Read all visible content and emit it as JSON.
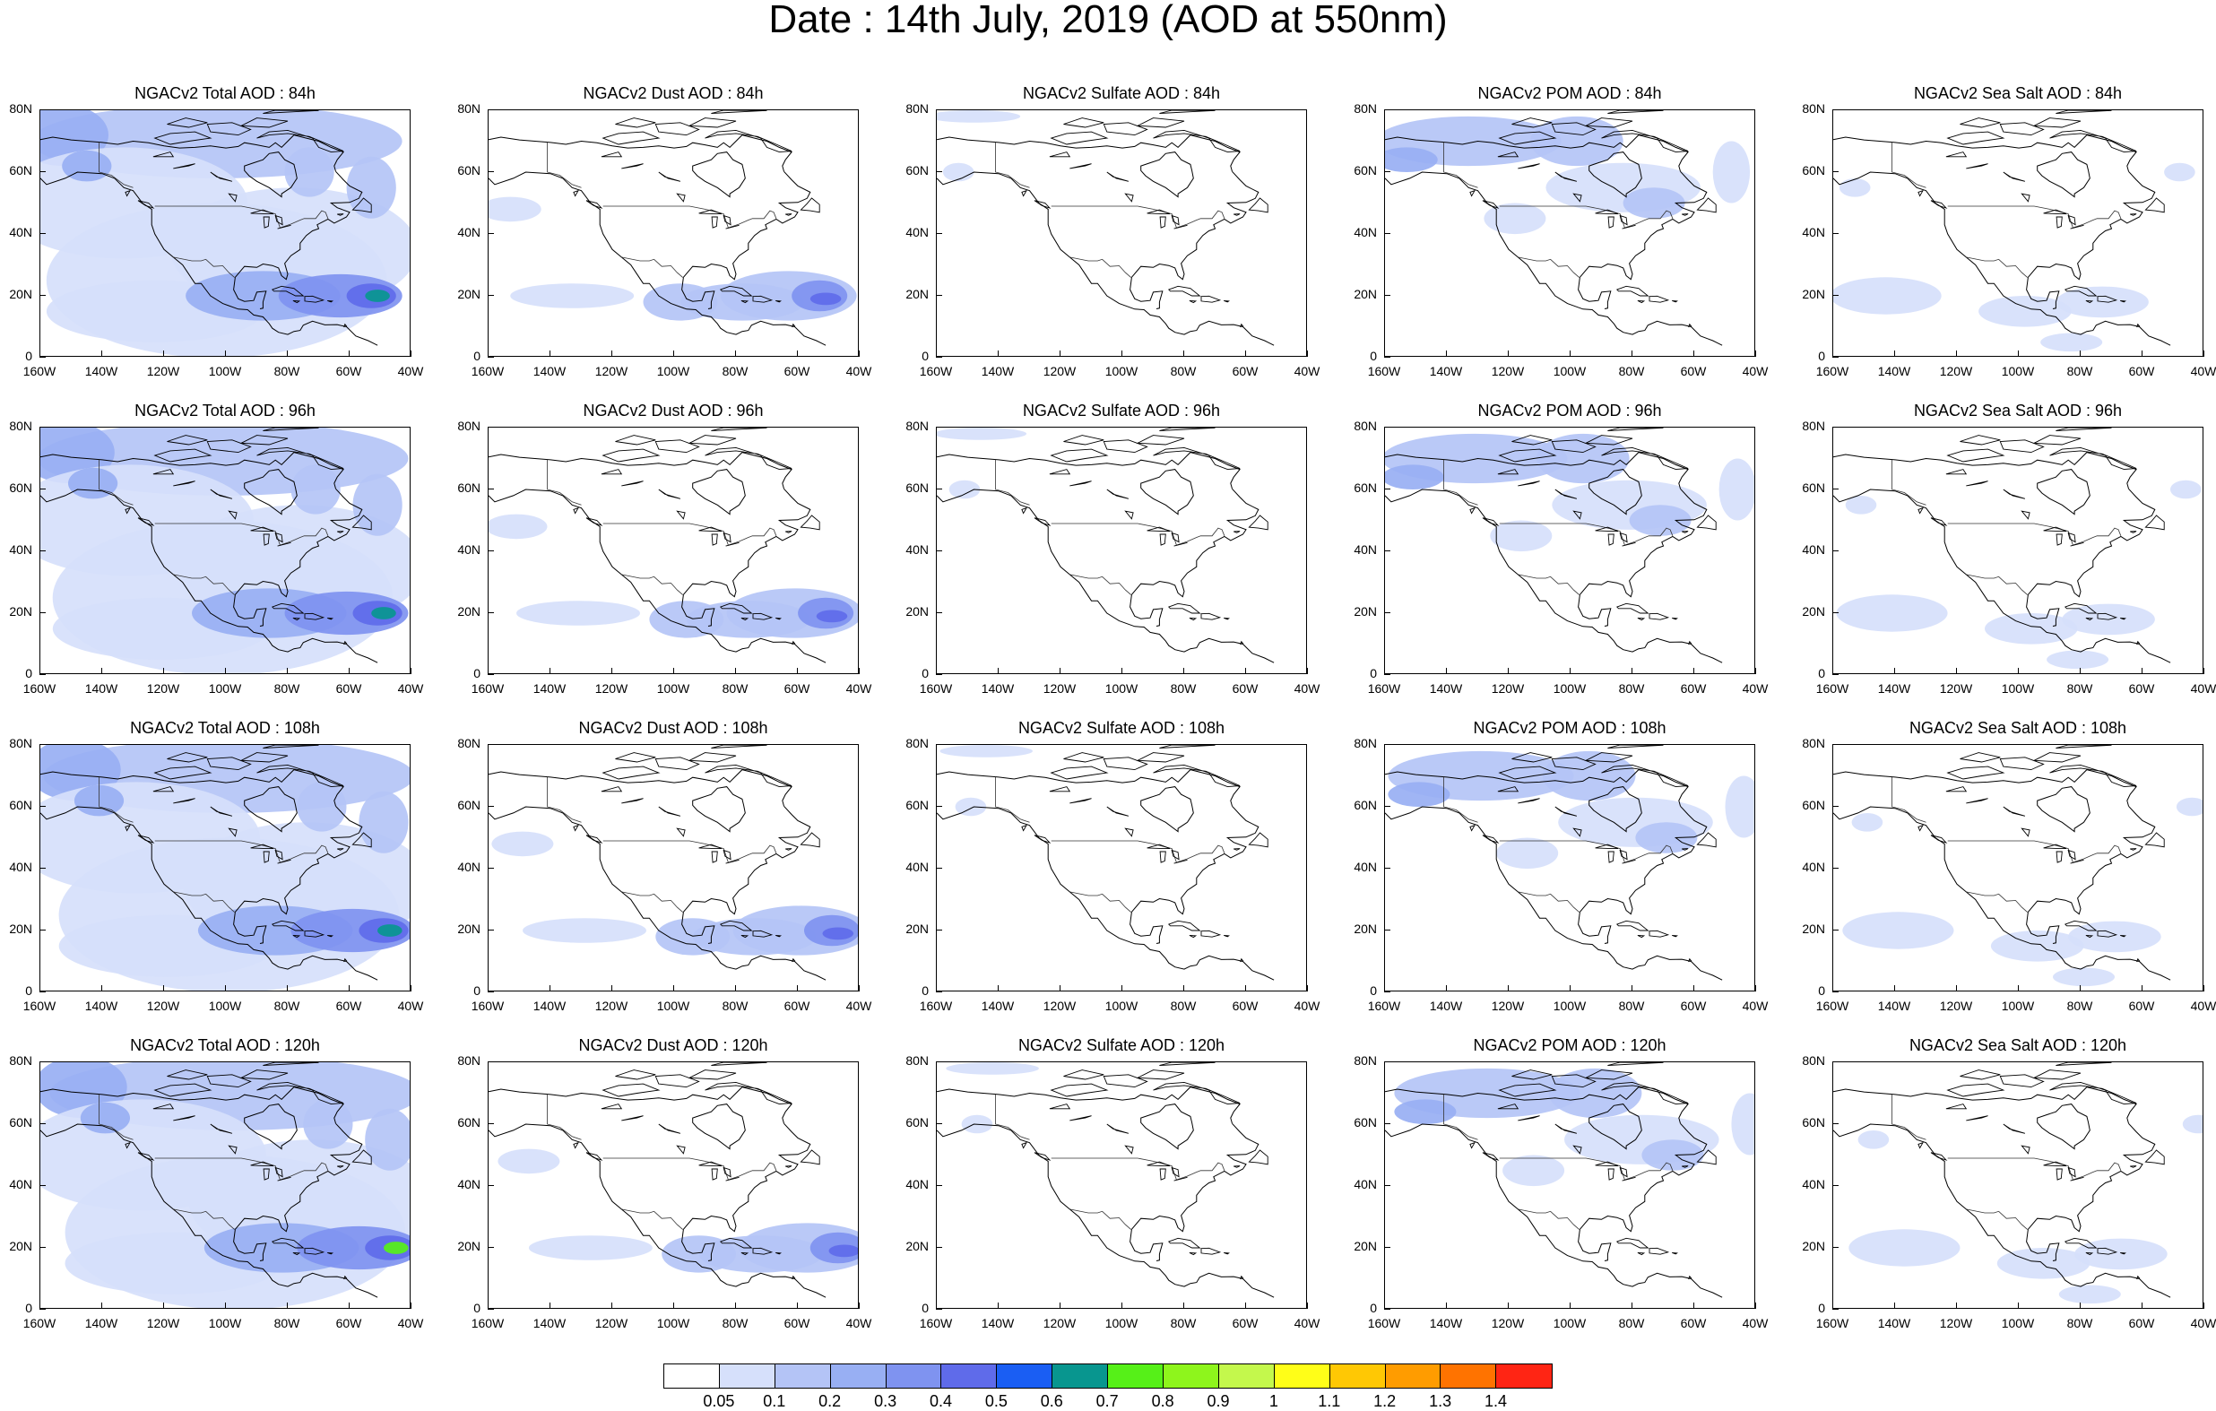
{
  "figure": {
    "title": "Date : 14th July, 2019 (AOD at 550nm)"
  },
  "axes": {
    "lat_labels": [
      "80N",
      "60N",
      "40N",
      "20N",
      "0"
    ],
    "lat_values": [
      80,
      60,
      40,
      20,
      0
    ],
    "lon_labels": [
      "160W",
      "140W",
      "120W",
      "100W",
      "80W",
      "60W",
      "40W"
    ],
    "lon_values": [
      -160,
      -140,
      -120,
      -100,
      -80,
      -60,
      -40
    ]
  },
  "panels": [
    [
      "NGACv2 Total AOD : 84h",
      "NGACv2 Dust AOD : 84h",
      "NGACv2 Sulfate AOD : 84h",
      "NGACv2 POM AOD : 84h",
      "NGACv2 Sea Salt AOD : 84h"
    ],
    [
      "NGACv2 Total AOD : 96h",
      "NGACv2 Dust AOD : 96h",
      "NGACv2 Sulfate AOD : 96h",
      "NGACv2 POM AOD : 96h",
      "NGACv2 Sea Salt AOD : 96h"
    ],
    [
      "NGACv2 Total AOD : 108h",
      "NGACv2 Dust AOD : 108h",
      "NGACv2 Sulfate AOD : 108h",
      "NGACv2 POM AOD : 108h",
      "NGACv2 Sea Salt AOD : 108h"
    ],
    [
      "NGACv2 Total AOD : 120h",
      "NGACv2 Dust AOD : 120h",
      "NGACv2 Sulfate AOD : 120h",
      "NGACv2 POM AOD : 120h",
      "NGACv2 Sea Salt  AOD : 120h"
    ]
  ],
  "colorbar": {
    "labels": [
      "0.05",
      "0.1",
      "0.2",
      "0.3",
      "0.4",
      "0.5",
      "0.6",
      "0.7",
      "0.8",
      "0.9",
      "1",
      "1.1",
      "1.2",
      "1.3",
      "1.4"
    ],
    "colors": [
      "#ffffff",
      "#d6e0fb",
      "#b4c4f6",
      "#98aff3",
      "#7f93f0",
      "#5f6bea",
      "#1a5ef3",
      "#08968f",
      "#56f018",
      "#8ef51c",
      "#c4f84c",
      "#fffe18",
      "#ffc804",
      "#ff9c00",
      "#ff7300",
      "#ff2514"
    ]
  }
}
